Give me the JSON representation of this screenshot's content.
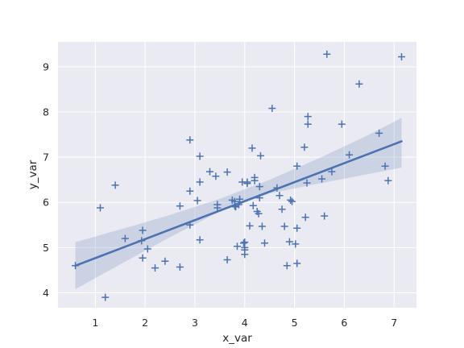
{
  "chart_data": {
    "type": "scatter",
    "title": "",
    "xlabel": "x_var",
    "ylabel": "y_var",
    "xlim": [
      0.25,
      7.45
    ],
    "ylim": [
      3.67,
      9.55
    ],
    "x_ticks": [
      1,
      2,
      3,
      4,
      5,
      6,
      7
    ],
    "y_ticks": [
      4,
      5,
      6,
      7,
      8,
      9
    ],
    "grid": true,
    "legend": "none",
    "colors": {
      "plot_background": "#eaeaf2",
      "grid": "#ffffff",
      "series": "#4c72b0",
      "text": "#262626"
    },
    "marker": "plus",
    "series": [
      {
        "points": [
          [
            0.6,
            4.6
          ],
          [
            1.2,
            3.9
          ],
          [
            1.1,
            5.88
          ],
          [
            1.4,
            6.38
          ],
          [
            1.6,
            5.2
          ],
          [
            1.93,
            5.15
          ],
          [
            1.95,
            5.38
          ],
          [
            1.95,
            4.77
          ],
          [
            2.05,
            4.97
          ],
          [
            2.2,
            4.55
          ],
          [
            2.4,
            4.7
          ],
          [
            2.7,
            4.57
          ],
          [
            2.7,
            5.92
          ],
          [
            2.9,
            7.38
          ],
          [
            2.9,
            6.25
          ],
          [
            2.9,
            5.5
          ],
          [
            3.05,
            6.04
          ],
          [
            3.1,
            5.17
          ],
          [
            3.1,
            6.45
          ],
          [
            3.1,
            7.02
          ],
          [
            3.3,
            6.68
          ],
          [
            3.42,
            6.58
          ],
          [
            3.45,
            5.95
          ],
          [
            3.45,
            5.88
          ],
          [
            3.65,
            6.67
          ],
          [
            3.65,
            4.73
          ],
          [
            3.75,
            6.05
          ],
          [
            3.8,
            6.02
          ],
          [
            3.8,
            5.92
          ],
          [
            3.82,
            5.9
          ],
          [
            3.85,
            5.03
          ],
          [
            3.88,
            5.95
          ],
          [
            3.9,
            6.07
          ],
          [
            3.95,
            6.45
          ],
          [
            3.98,
            5.1
          ],
          [
            4.0,
            5.12
          ],
          [
            4.0,
            5.0
          ],
          [
            4.0,
            4.95
          ],
          [
            4.0,
            4.85
          ],
          [
            4.05,
            6.45
          ],
          [
            4.05,
            6.42
          ],
          [
            4.1,
            5.48
          ],
          [
            4.15,
            7.2
          ],
          [
            4.17,
            5.93
          ],
          [
            4.2,
            6.55
          ],
          [
            4.2,
            6.48
          ],
          [
            4.25,
            5.8
          ],
          [
            4.28,
            5.75
          ],
          [
            4.3,
            6.35
          ],
          [
            4.3,
            6.1
          ],
          [
            4.32,
            7.03
          ],
          [
            4.35,
            5.47
          ],
          [
            4.4,
            5.1
          ],
          [
            4.55,
            8.08
          ],
          [
            4.65,
            6.32
          ],
          [
            4.7,
            6.15
          ],
          [
            4.75,
            5.85
          ],
          [
            4.8,
            5.47
          ],
          [
            4.85,
            4.6
          ],
          [
            4.9,
            5.13
          ],
          [
            4.92,
            6.05
          ],
          [
            4.95,
            6.02
          ],
          [
            5.02,
            5.08
          ],
          [
            5.05,
            6.8
          ],
          [
            5.05,
            4.65
          ],
          [
            5.05,
            5.43
          ],
          [
            5.2,
            7.22
          ],
          [
            5.22,
            5.67
          ],
          [
            5.25,
            6.43
          ],
          [
            5.27,
            7.9
          ],
          [
            5.27,
            7.73
          ],
          [
            5.55,
            6.52
          ],
          [
            5.6,
            5.7
          ],
          [
            5.65,
            9.28
          ],
          [
            5.75,
            6.68
          ],
          [
            5.95,
            7.73
          ],
          [
            6.1,
            7.05
          ],
          [
            6.3,
            8.62
          ],
          [
            6.7,
            7.53
          ],
          [
            6.82,
            6.8
          ],
          [
            6.88,
            6.48
          ],
          [
            7.15,
            9.22
          ]
        ]
      }
    ],
    "regression_line": {
      "x": [
        0.6,
        7.15
      ],
      "y": [
        4.6,
        7.35
      ]
    },
    "confidence_band": {
      "x": [
        0.6,
        1.5,
        2.5,
        3.5,
        4.5,
        5.5,
        6.5,
        7.15
      ],
      "lower": [
        4.08,
        4.63,
        5.23,
        5.8,
        6.2,
        6.42,
        6.63,
        6.77
      ],
      "upper": [
        5.12,
        5.4,
        5.72,
        6.08,
        6.5,
        6.98,
        7.5,
        7.87
      ]
    }
  }
}
